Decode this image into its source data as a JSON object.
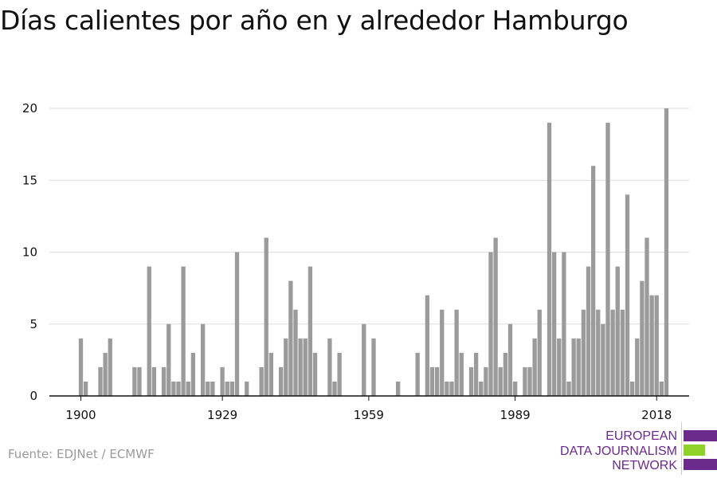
{
  "title": "Días calientes por año en y alrededor Hamburgo",
  "source": "Fuente: EDJNet / ECMWF",
  "logo": {
    "line1": "EUROPEAN",
    "line2": "DATA JOURNALISM",
    "line3": "NETWORK",
    "colors": {
      "purple": "#6b2a8c",
      "green": "#8fd22a"
    }
  },
  "colors": {
    "bar": "#9b9b9b",
    "grid": "#dddddd",
    "axis": "#111111",
    "text": "#111111"
  },
  "chart_data": {
    "type": "bar",
    "title": "Días calientes por año en y alrededor Hamburgo",
    "xlabel": "",
    "ylabel": "",
    "x_start": 1900,
    "x_ticks": [
      1900,
      1929,
      1959,
      1989,
      2018
    ],
    "ylim": [
      0,
      20
    ],
    "y_ticks": [
      0,
      5,
      10,
      15,
      20
    ],
    "grid": true,
    "values": [
      4,
      1,
      0,
      0,
      2,
      3,
      4,
      0,
      0,
      0,
      0,
      2,
      2,
      0,
      9,
      2,
      0,
      2,
      5,
      1,
      1,
      9,
      1,
      3,
      0,
      5,
      1,
      1,
      0,
      2,
      1,
      1,
      10,
      0,
      1,
      0,
      0,
      2,
      11,
      3,
      0,
      2,
      4,
      8,
      6,
      4,
      4,
      9,
      3,
      0,
      0,
      4,
      1,
      3,
      0,
      0,
      0,
      0,
      5,
      0,
      4,
      0,
      0,
      0,
      0,
      1,
      0,
      0,
      0,
      3,
      0,
      7,
      2,
      2,
      6,
      1,
      1,
      6,
      3,
      0,
      2,
      3,
      1,
      2,
      10,
      11,
      2,
      3,
      5,
      1,
      0,
      2,
      2,
      4,
      6,
      0,
      19,
      10,
      4,
      10,
      1,
      4,
      4,
      6,
      9,
      16,
      6,
      5,
      19,
      6,
      9,
      6,
      14,
      1,
      4,
      8,
      11,
      7,
      7,
      1,
      20
    ]
  }
}
